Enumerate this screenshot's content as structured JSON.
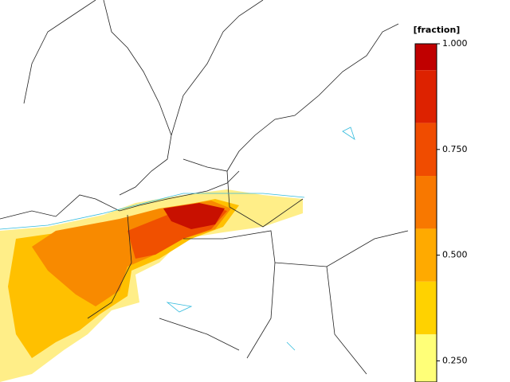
{
  "legend": {
    "title": "[fraction]",
    "lim": [
      0.2,
      1.0
    ],
    "ticks": [
      {
        "value": 1.0,
        "label": "1.000"
      },
      {
        "value": 0.75,
        "label": "0.750"
      },
      {
        "value": 0.5,
        "label": "0.500"
      },
      {
        "value": 0.25,
        "label": "0.250"
      }
    ],
    "bands": [
      {
        "from": 0.9375,
        "to": 1.0,
        "color": "#c00000"
      },
      {
        "from": 0.8125,
        "to": 0.9375,
        "color": "#dd2200"
      },
      {
        "from": 0.6875,
        "to": 0.8125,
        "color": "#f04c00"
      },
      {
        "from": 0.5625,
        "to": 0.6875,
        "color": "#f87800"
      },
      {
        "from": 0.4375,
        "to": 0.5625,
        "color": "#ffaa00"
      },
      {
        "from": 0.3125,
        "to": 0.4375,
        "color": "#ffd200"
      },
      {
        "from": 0.2,
        "to": 0.3125,
        "color": "#ffff78"
      }
    ]
  }
}
